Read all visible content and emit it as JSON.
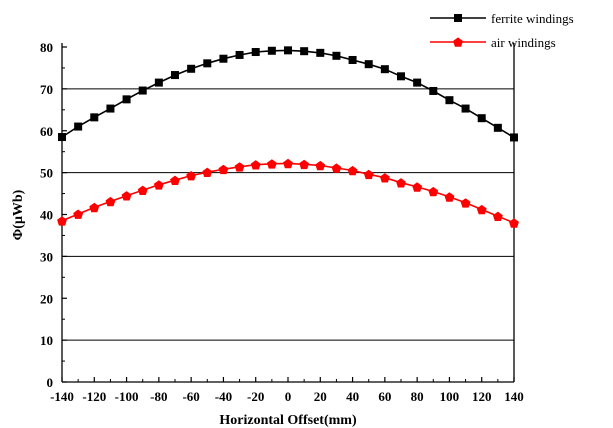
{
  "chart_data": {
    "type": "line",
    "title": "",
    "xlabel": "Horizontal Offset(mm)",
    "ylabel": "Φ(μWb)",
    "x": [
      -140,
      -130,
      -120,
      -110,
      -100,
      -90,
      -80,
      -70,
      -60,
      -50,
      -40,
      -30,
      -20,
      -10,
      0,
      10,
      20,
      30,
      40,
      50,
      60,
      70,
      80,
      90,
      100,
      110,
      120,
      130,
      140
    ],
    "xlim": [
      -140,
      140
    ],
    "ylim": [
      0,
      80
    ],
    "xticks": [
      "-140",
      "-120",
      "-100",
      "-80",
      "-60",
      "-40",
      "-20",
      "0",
      "20",
      "40",
      "60",
      "80",
      "100",
      "120",
      "140"
    ],
    "yticks": [
      "0",
      "10",
      "20",
      "30",
      "40",
      "50",
      "60",
      "70",
      "80"
    ],
    "grid": "horizontal lines at 10, 30, 50, 70",
    "legend_position": "top-right, outside plot",
    "series": [
      {
        "name": "ferrite windings",
        "color": "#000000",
        "marker": "square",
        "values": [
          58.5,
          61,
          63.2,
          65.3,
          67.5,
          69.6,
          71.5,
          73.3,
          74.8,
          76.1,
          77.2,
          78.1,
          78.8,
          79.1,
          79.2,
          79.0,
          78.6,
          77.9,
          76.9,
          75.9,
          74.7,
          73.0,
          71.5,
          69.5,
          67.3,
          65.3,
          63.0,
          60.7,
          58.4
        ]
      },
      {
        "name": "air windings",
        "color": "#ff0000",
        "marker": "pentagon",
        "values": [
          38.5,
          40.1,
          41.7,
          43.1,
          44.5,
          45.8,
          47.1,
          48.2,
          49.3,
          50.1,
          50.8,
          51.4,
          51.9,
          52.1,
          52.2,
          52.0,
          51.7,
          51.1,
          50.5,
          49.6,
          48.8,
          47.6,
          46.6,
          45.5,
          44.2,
          42.8,
          41.2,
          39.6,
          38.0
        ]
      }
    ]
  }
}
